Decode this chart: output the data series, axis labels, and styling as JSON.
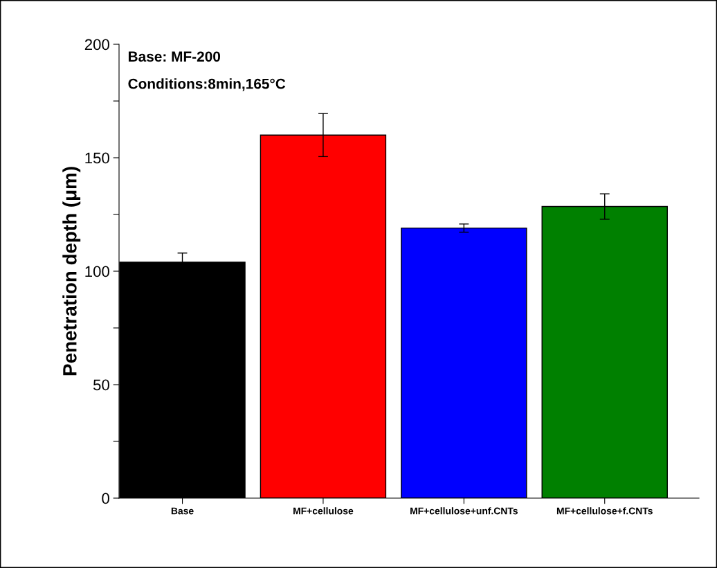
{
  "chart_data": {
    "type": "bar",
    "ylabel": "Penetration depth (μm)",
    "categories": [
      "Base",
      "MF+cellulose",
      "MF+cellulose+unf.CNTs",
      "MF+cellulose+f.CNTs"
    ],
    "values": [
      104,
      160,
      119,
      128.5
    ],
    "errors": [
      4,
      9.5,
      1.8,
      5.6
    ],
    "colors": [
      "#000000",
      "#ff0000",
      "#0000ff",
      "#008000"
    ],
    "ylim": [
      0,
      200
    ],
    "yticks": [
      0,
      {
        "value": 25,
        "label": null
      },
      50,
      {
        "value": 75,
        "label": null
      },
      100,
      {
        "value": 125,
        "label": null
      },
      150,
      {
        "value": 175,
        "label": null
      },
      200
    ],
    "annotations": [
      "Base: MF-200",
      "Conditions:8min,165°C"
    ],
    "grid": false,
    "legend": false
  }
}
